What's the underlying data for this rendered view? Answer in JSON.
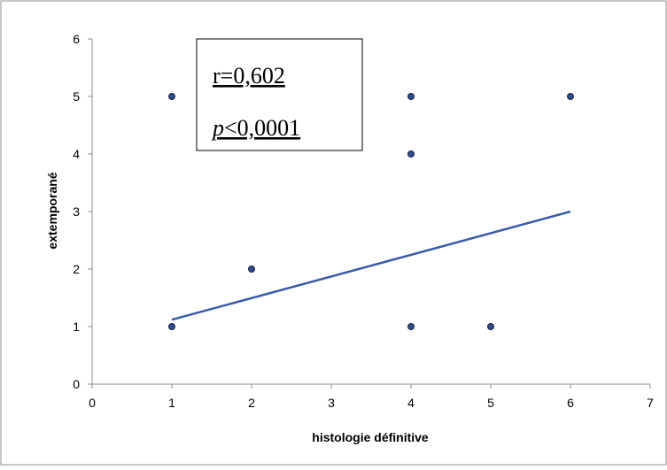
{
  "chart_data": {
    "type": "scatter",
    "xlabel": "histologie définitive",
    "ylabel": "extemporané",
    "xlim": [
      0,
      7
    ],
    "ylim": [
      0,
      6
    ],
    "xticks": [
      "0",
      "1",
      "2",
      "3",
      "4",
      "5",
      "6",
      "7"
    ],
    "yticks": [
      "0",
      "1",
      "2",
      "3",
      "4",
      "5",
      "6"
    ],
    "grid": false,
    "points": [
      {
        "x": 1,
        "y": 5
      },
      {
        "x": 1,
        "y": 1
      },
      {
        "x": 2,
        "y": 2
      },
      {
        "x": 4,
        "y": 5
      },
      {
        "x": 4,
        "y": 4
      },
      {
        "x": 4,
        "y": 1
      },
      {
        "x": 5,
        "y": 1
      },
      {
        "x": 6,
        "y": 5
      }
    ],
    "trendline": {
      "x": [
        1,
        6
      ],
      "y": [
        1.12,
        3.0
      ]
    },
    "annotation": {
      "r_label": "r=0,602",
      "p_symbol": "p",
      "p_value": "<0,0001"
    },
    "colors": {
      "point_fill": "#2F4B8C",
      "point_stroke": "#1A2440",
      "trendline": "#3B5BA8",
      "frame": "#8C8C8C"
    }
  }
}
